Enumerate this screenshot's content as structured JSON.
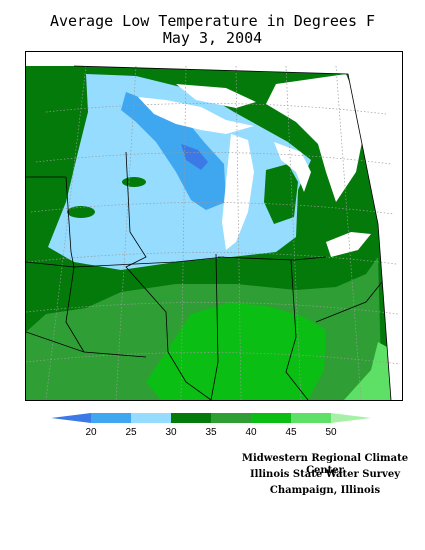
{
  "title": {
    "line1": "Average Low Temperature in Degrees F",
    "line2": "May 3, 2004"
  },
  "legend": {
    "ticks": [
      "20",
      "25",
      "30",
      "35",
      "40",
      "45",
      "50"
    ],
    "bins": [
      {
        "label": "<20",
        "color": "#3c78e6"
      },
      {
        "label": "20-25",
        "color": "#3fa6f0"
      },
      {
        "label": "25-30",
        "color": "#96dcff"
      },
      {
        "label": "30-35",
        "color": "#037a0a"
      },
      {
        "label": "35-40",
        "color": "#2f9f35"
      },
      {
        "label": "40-45",
        "color": "#0bbe13"
      },
      {
        "label": "45-50",
        "color": "#5ee066"
      },
      {
        "label": ">50",
        "color": "#a8f0a8"
      }
    ]
  },
  "credits": {
    "line1": "Midwestern Regional Climate Center",
    "line2": "Illinois State Water Survey",
    "line3": "Champaign, Illinois"
  }
}
